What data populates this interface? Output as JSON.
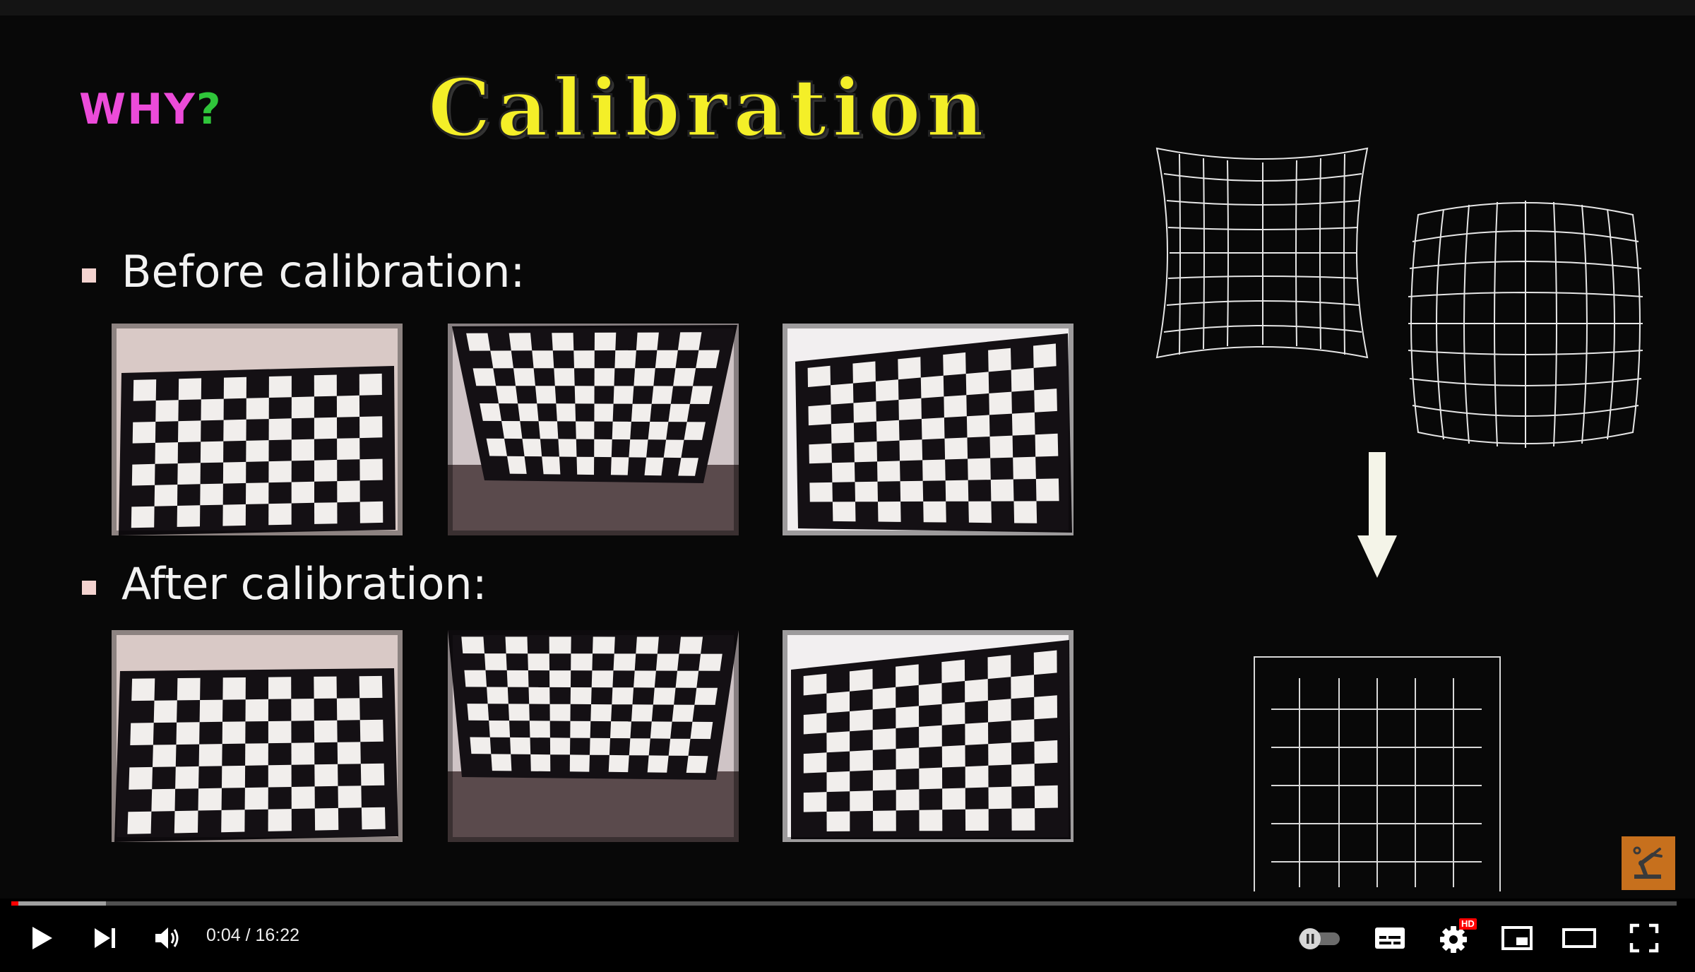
{
  "slide": {
    "why_text": "WHY",
    "why_mark": "?",
    "title": "Calibration",
    "before_label": "Before calibration:",
    "after_label": "After calibration:"
  },
  "player": {
    "time_display": "0:04 / 16:22",
    "hd_badge": "HD",
    "progress_fraction": 0.0043,
    "buffered_fraction": 0.057,
    "icons": [
      "play-icon",
      "next-icon",
      "volume-icon",
      "autoplay-toggle-icon",
      "subtitles-icon",
      "settings-icon",
      "miniplayer-icon",
      "theater-mode-icon",
      "fullscreen-icon"
    ]
  },
  "colors": {
    "why": "#ec4bd9",
    "question_mark": "#2fc53a",
    "title": "#f4ef28",
    "progress_played": "#ff0000",
    "channel_logo": "#c7701d"
  }
}
